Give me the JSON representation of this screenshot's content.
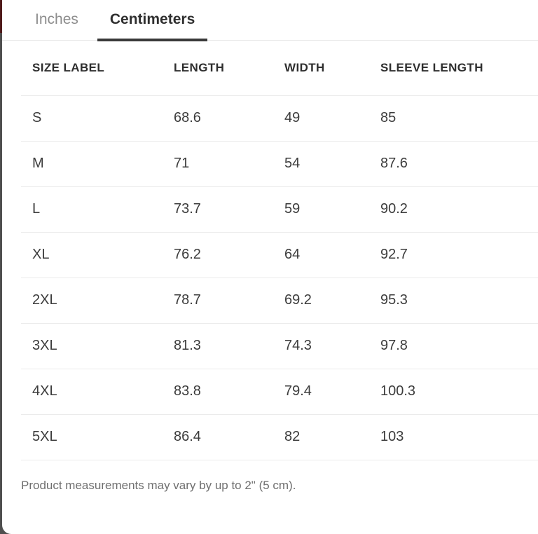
{
  "colors": {
    "backdrop_gray": "#4f4f4f",
    "backdrop_maroon": "#501b1b",
    "tab_active_underline": "#3a3a3a",
    "divider": "#ebebeb"
  },
  "tabs": [
    {
      "label": "Inches",
      "active": false
    },
    {
      "label": "Centimeters",
      "active": true
    }
  ],
  "table": {
    "columns": [
      "SIZE LABEL",
      "LENGTH",
      "WIDTH",
      "SLEEVE LENGTH"
    ],
    "rows": [
      {
        "size": "S",
        "length": "68.6",
        "width": "49",
        "sleeve": "85"
      },
      {
        "size": "M",
        "length": "71",
        "width": "54",
        "sleeve": "87.6"
      },
      {
        "size": "L",
        "length": "73.7",
        "width": "59",
        "sleeve": "90.2"
      },
      {
        "size": "XL",
        "length": "76.2",
        "width": "64",
        "sleeve": "92.7"
      },
      {
        "size": "2XL",
        "length": "78.7",
        "width": "69.2",
        "sleeve": "95.3"
      },
      {
        "size": "3XL",
        "length": "81.3",
        "width": "74.3",
        "sleeve": "97.8"
      },
      {
        "size": "4XL",
        "length": "83.8",
        "width": "79.4",
        "sleeve": "100.3"
      },
      {
        "size": "5XL",
        "length": "86.4",
        "width": "82",
        "sleeve": "103"
      }
    ]
  },
  "footer": {
    "note": "Product measurements may vary by up to 2\" (5 cm)."
  }
}
